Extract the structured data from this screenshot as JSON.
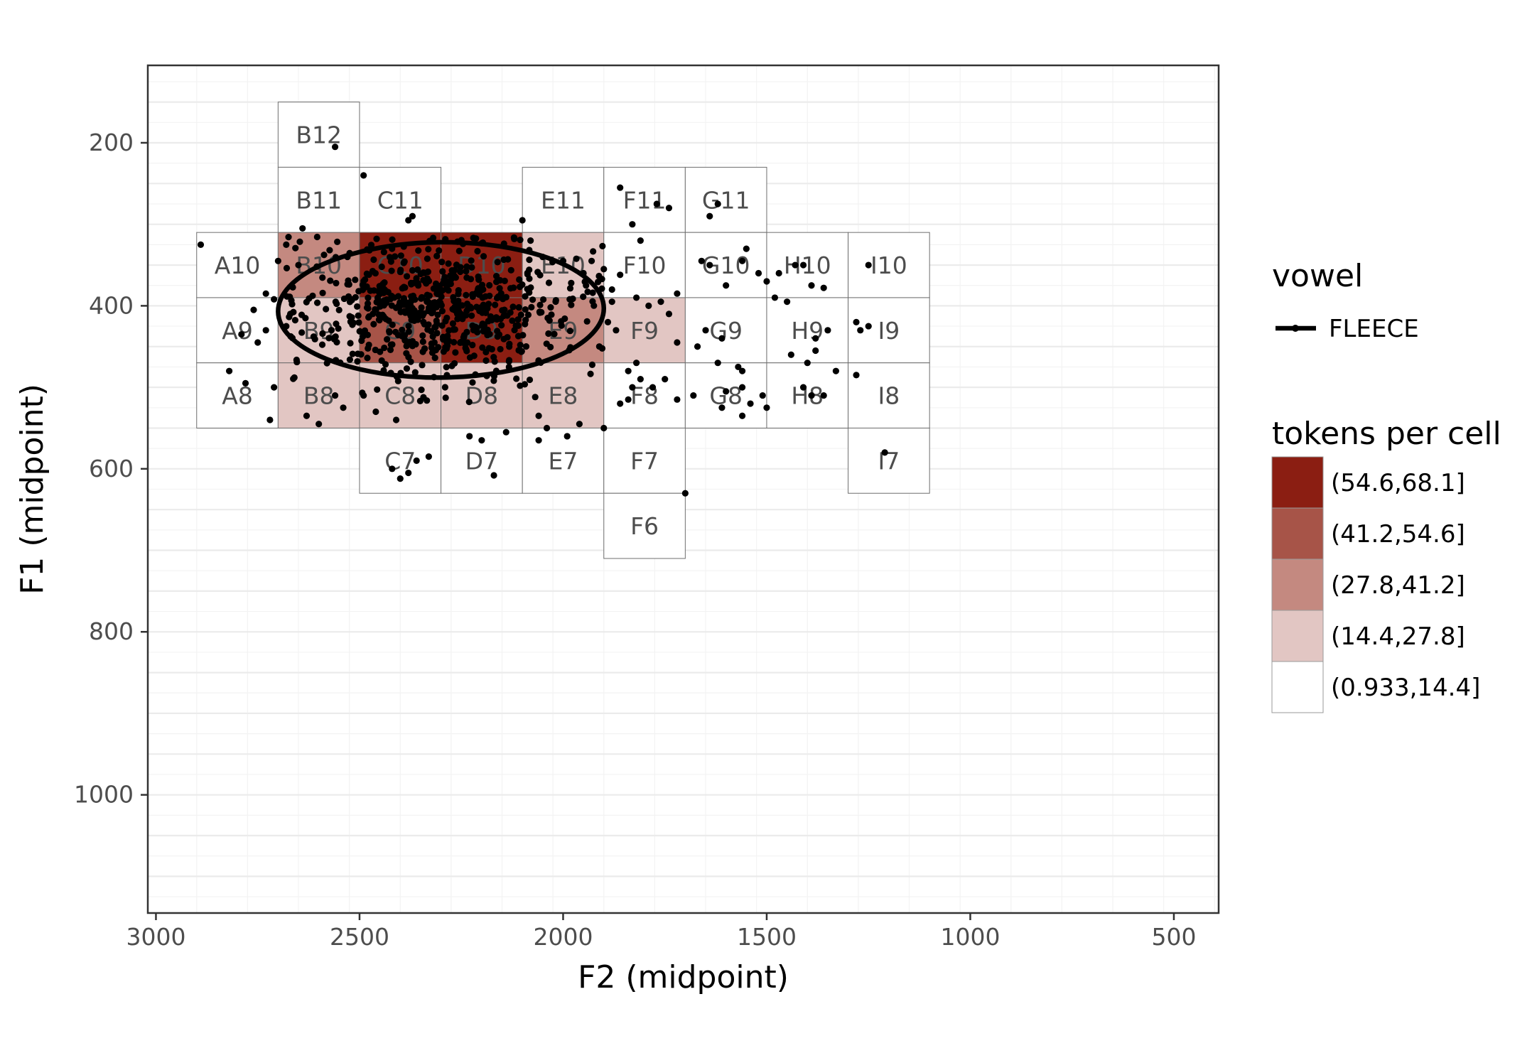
{
  "chart_data": {
    "type": "heatmap",
    "title": "",
    "xlabel": "F2 (midpoint)",
    "ylabel": "F1 (midpoint)",
    "x_reversed": true,
    "y_reversed": true,
    "xlim": [
      3020,
      390
    ],
    "ylim": [
      105,
      1145
    ],
    "grid": true,
    "x_ticks": [
      3000,
      2500,
      2000,
      1500,
      1000,
      500
    ],
    "x_tick_labels": [
      "3000",
      "2500",
      "2000",
      "1500",
      "1000",
      "500"
    ],
    "y_ticks": [
      200,
      400,
      600,
      800,
      1000
    ],
    "y_tick_labels": [
      "200",
      "400",
      "600",
      "800",
      "1000"
    ],
    "bin_legend": {
      "title": "tokens per cell",
      "bins": [
        {
          "label": "(54.6,68.1]",
          "color": "#8b1e12"
        },
        {
          "label": "(41.2,54.6]",
          "color": "#a75448"
        },
        {
          "label": "(27.8,41.2]",
          "color": "#c48980"
        },
        {
          "label": "(14.4,27.8]",
          "color": "#e2c6c3"
        },
        {
          "label": "(0.933,14.4]",
          "color": "#ffffff"
        }
      ]
    },
    "vowel_legend": {
      "title": "vowel",
      "entries": [
        {
          "label": "FLEECE",
          "color": "#000000"
        }
      ]
    },
    "cells": [
      {
        "label": "B12",
        "f2": [
          2700,
          2500
        ],
        "f1": [
          150,
          230
        ],
        "bin": 4
      },
      {
        "label": "B11",
        "f2": [
          2700,
          2500
        ],
        "f1": [
          230,
          310
        ],
        "bin": 4
      },
      {
        "label": "C11",
        "f2": [
          2500,
          2300
        ],
        "f1": [
          230,
          310
        ],
        "bin": 4
      },
      {
        "label": "E11",
        "f2": [
          2100,
          1900
        ],
        "f1": [
          230,
          310
        ],
        "bin": 4
      },
      {
        "label": "F11",
        "f2": [
          1900,
          1700
        ],
        "f1": [
          230,
          310
        ],
        "bin": 4
      },
      {
        "label": "G11",
        "f2": [
          1700,
          1500
        ],
        "f1": [
          230,
          310
        ],
        "bin": 4
      },
      {
        "label": "A10",
        "f2": [
          2900,
          2700
        ],
        "f1": [
          310,
          390
        ],
        "bin": 4
      },
      {
        "label": "B10",
        "f2": [
          2700,
          2500
        ],
        "f1": [
          310,
          390
        ],
        "bin": 2
      },
      {
        "label": "C10",
        "f2": [
          2500,
          2300
        ],
        "f1": [
          310,
          390
        ],
        "bin": 0
      },
      {
        "label": "D10",
        "f2": [
          2300,
          2100
        ],
        "f1": [
          310,
          390
        ],
        "bin": 0
      },
      {
        "label": "E10",
        "f2": [
          2100,
          1900
        ],
        "f1": [
          310,
          390
        ],
        "bin": 3
      },
      {
        "label": "F10",
        "f2": [
          1900,
          1700
        ],
        "f1": [
          310,
          390
        ],
        "bin": 4
      },
      {
        "label": "G10",
        "f2": [
          1700,
          1500
        ],
        "f1": [
          310,
          390
        ],
        "bin": 4
      },
      {
        "label": "H10",
        "f2": [
          1500,
          1300
        ],
        "f1": [
          310,
          390
        ],
        "bin": 4
      },
      {
        "label": "I10",
        "f2": [
          1300,
          1100
        ],
        "f1": [
          310,
          390
        ],
        "bin": 4
      },
      {
        "label": "A9",
        "f2": [
          2900,
          2700
        ],
        "f1": [
          390,
          470
        ],
        "bin": 4
      },
      {
        "label": "B9",
        "f2": [
          2700,
          2500
        ],
        "f1": [
          390,
          470
        ],
        "bin": 3
      },
      {
        "label": "C9",
        "f2": [
          2500,
          2300
        ],
        "f1": [
          390,
          470
        ],
        "bin": 1
      },
      {
        "label": "D9",
        "f2": [
          2300,
          2100
        ],
        "f1": [
          390,
          470
        ],
        "bin": 0
      },
      {
        "label": "E9",
        "f2": [
          2100,
          1900
        ],
        "f1": [
          390,
          470
        ],
        "bin": 2
      },
      {
        "label": "F9",
        "f2": [
          1900,
          1700
        ],
        "f1": [
          390,
          470
        ],
        "bin": 3
      },
      {
        "label": "G9",
        "f2": [
          1700,
          1500
        ],
        "f1": [
          390,
          470
        ],
        "bin": 4
      },
      {
        "label": "H9",
        "f2": [
          1500,
          1300
        ],
        "f1": [
          390,
          470
        ],
        "bin": 4
      },
      {
        "label": "I9",
        "f2": [
          1300,
          1100
        ],
        "f1": [
          390,
          470
        ],
        "bin": 4
      },
      {
        "label": "A8",
        "f2": [
          2900,
          2700
        ],
        "f1": [
          470,
          550
        ],
        "bin": 4
      },
      {
        "label": "B8",
        "f2": [
          2700,
          2500
        ],
        "f1": [
          470,
          550
        ],
        "bin": 3
      },
      {
        "label": "C8",
        "f2": [
          2500,
          2300
        ],
        "f1": [
          470,
          550
        ],
        "bin": 3
      },
      {
        "label": "D8",
        "f2": [
          2300,
          2100
        ],
        "f1": [
          470,
          550
        ],
        "bin": 3
      },
      {
        "label": "E8",
        "f2": [
          2100,
          1900
        ],
        "f1": [
          470,
          550
        ],
        "bin": 3
      },
      {
        "label": "F8",
        "f2": [
          1900,
          1700
        ],
        "f1": [
          470,
          550
        ],
        "bin": 4
      },
      {
        "label": "G8",
        "f2": [
          1700,
          1500
        ],
        "f1": [
          470,
          550
        ],
        "bin": 4
      },
      {
        "label": "H8",
        "f2": [
          1500,
          1300
        ],
        "f1": [
          470,
          550
        ],
        "bin": 4
      },
      {
        "label": "I8",
        "f2": [
          1300,
          1100
        ],
        "f1": [
          470,
          550
        ],
        "bin": 4
      },
      {
        "label": "C7",
        "f2": [
          2500,
          2300
        ],
        "f1": [
          550,
          630
        ],
        "bin": 4
      },
      {
        "label": "D7",
        "f2": [
          2300,
          2100
        ],
        "f1": [
          550,
          630
        ],
        "bin": 4
      },
      {
        "label": "E7",
        "f2": [
          2100,
          1900
        ],
        "f1": [
          550,
          630
        ],
        "bin": 4
      },
      {
        "label": "F7",
        "f2": [
          1900,
          1700
        ],
        "f1": [
          550,
          630
        ],
        "bin": 4
      },
      {
        "label": "I7",
        "f2": [
          1300,
          1100
        ],
        "f1": [
          550,
          630
        ],
        "bin": 4
      },
      {
        "label": "F6",
        "f2": [
          1900,
          1700
        ],
        "f1": [
          630,
          710
        ],
        "bin": 4
      }
    ],
    "ellipse": {
      "vowel": "FLEECE",
      "center_f2": 2300,
      "center_f1": 405,
      "radius_f2": 400,
      "radius_f1": 83
    },
    "points": [
      [
        2490,
        240
      ],
      [
        2560,
        205
      ],
      [
        2640,
        305
      ],
      [
        2370,
        290
      ],
      [
        2380,
        295
      ],
      [
        2100,
        295
      ],
      [
        1860,
        255
      ],
      [
        1830,
        300
      ],
      [
        1810,
        320
      ],
      [
        1770,
        275
      ],
      [
        1740,
        280
      ],
      [
        1640,
        290
      ],
      [
        1620,
        275
      ],
      [
        2890,
        325
      ],
      [
        2680,
        325
      ],
      [
        2700,
        345
      ],
      [
        2650,
        350
      ],
      [
        2730,
        385
      ],
      [
        2710,
        392
      ],
      [
        2760,
        405
      ],
      [
        2730,
        430
      ],
      [
        2750,
        445
      ],
      [
        2790,
        435
      ],
      [
        2670,
        410
      ],
      [
        2680,
        425
      ],
      [
        2820,
        480
      ],
      [
        2780,
        495
      ],
      [
        2720,
        540
      ],
      [
        2710,
        500
      ],
      [
        2660,
        488
      ],
      [
        2630,
        535
      ],
      [
        2600,
        545
      ],
      [
        2560,
        510
      ],
      [
        2540,
        525
      ],
      [
        2490,
        510
      ],
      [
        2460,
        530
      ],
      [
        2410,
        540
      ],
      [
        2380,
        605
      ],
      [
        2330,
        585
      ],
      [
        2230,
        560
      ],
      [
        2200,
        565
      ],
      [
        2140,
        555
      ],
      [
        2170,
        608
      ],
      [
        2060,
        535
      ],
      [
        2040,
        550
      ],
      [
        2060,
        565
      ],
      [
        1990,
        560
      ],
      [
        1960,
        545
      ],
      [
        1900,
        550
      ],
      [
        1860,
        520
      ],
      [
        1840,
        480
      ],
      [
        1830,
        500
      ],
      [
        1780,
        500
      ],
      [
        1820,
        470
      ],
      [
        1700,
        630
      ],
      [
        1720,
        445
      ],
      [
        1650,
        430
      ],
      [
        1670,
        450
      ],
      [
        1610,
        440
      ],
      [
        1620,
        470
      ],
      [
        1600,
        505
      ],
      [
        1610,
        525
      ],
      [
        1560,
        480
      ],
      [
        1560,
        535
      ],
      [
        1540,
        520
      ],
      [
        1570,
        475
      ],
      [
        1600,
        375
      ],
      [
        1550,
        330
      ],
      [
        1560,
        345
      ],
      [
        1520,
        360
      ],
      [
        1480,
        390
      ],
      [
        1450,
        395
      ],
      [
        1410,
        350
      ],
      [
        1440,
        460
      ],
      [
        1400,
        470
      ],
      [
        1380,
        440
      ],
      [
        1410,
        500
      ],
      [
        1390,
        510
      ],
      [
        1360,
        510
      ],
      [
        1330,
        480
      ],
      [
        1280,
        485
      ],
      [
        1270,
        430
      ],
      [
        1250,
        425
      ],
      [
        1210,
        580
      ],
      [
        1660,
        345
      ],
      [
        1640,
        350
      ],
      [
        1500,
        370
      ],
      [
        1470,
        360
      ],
      [
        1380,
        455
      ],
      [
        1350,
        430
      ],
      [
        1430,
        350
      ],
      [
        1390,
        375
      ],
      [
        1360,
        378
      ],
      [
        1250,
        350
      ],
      [
        1280,
        420
      ],
      [
        1510,
        510
      ],
      [
        1500,
        525
      ],
      [
        1560,
        500
      ],
      [
        1680,
        510
      ],
      [
        1720,
        515
      ],
      [
        1750,
        490
      ],
      [
        1810,
        490
      ],
      [
        1840,
        515
      ],
      [
        1890,
        420
      ],
      [
        1870,
        430
      ],
      [
        1880,
        395
      ],
      [
        1860,
        362
      ],
      [
        1880,
        380
      ],
      [
        1820,
        390
      ],
      [
        1790,
        400
      ],
      [
        1760,
        395
      ],
      [
        1740,
        410
      ],
      [
        1720,
        385
      ],
      [
        1900,
        355
      ],
      [
        1930,
        345
      ],
      [
        1950,
        360
      ],
      [
        2000,
        345
      ],
      [
        2050,
        340
      ],
      [
        2080,
        320
      ],
      [
        2120,
        318
      ],
      [
        2400,
        612
      ],
      [
        2360,
        590
      ],
      [
        2420,
        600
      ]
    ],
    "dense_region": {
      "f2": [
        2680,
        1900
      ],
      "f1": [
        315,
        520
      ]
    }
  }
}
